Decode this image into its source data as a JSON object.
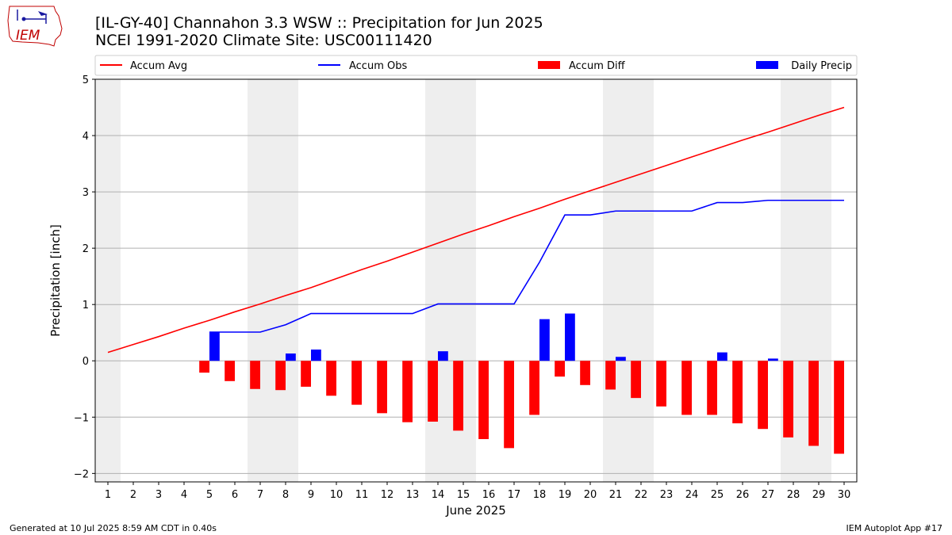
{
  "title": {
    "line1": "[IL-GY-40] Channahon 3.3 WSW :: Precipitation for Jun 2025",
    "line2": "NCEI 1991-2020 Climate Site: USC00111420"
  },
  "logo_text": "IEM",
  "footer": {
    "left": "Generated at 10 Jul 2025 8:59 AM CDT in 0.40s",
    "right": "IEM Autoplot App #17"
  },
  "colors": {
    "accum_avg": "#ff0000",
    "accum_obs": "#0000ff",
    "accum_diff": "#ff0000",
    "daily_precip": "#0000ff",
    "weekend_shade": "#eeeeee",
    "grid": "#b0b0b0"
  },
  "chart_data": {
    "type": "bar",
    "xlabel": "June 2025",
    "ylabel": "Precipitation [inch]",
    "ylim": [
      -2.15,
      5
    ],
    "yticks": [
      5,
      4,
      3,
      2,
      1,
      0,
      -1,
      -2
    ],
    "ytick_labels": [
      "5",
      "4",
      "3",
      "2",
      "1",
      "0",
      "−1",
      "−2"
    ],
    "grid": true,
    "legend_placement": "top",
    "days": [
      1,
      2,
      3,
      4,
      5,
      6,
      7,
      8,
      9,
      10,
      11,
      12,
      13,
      14,
      15,
      16,
      17,
      18,
      19,
      20,
      21,
      22,
      23,
      24,
      25,
      26,
      27,
      28,
      29,
      30
    ],
    "shaded_days": [
      1,
      7,
      8,
      14,
      15,
      21,
      22,
      28,
      29
    ],
    "series": [
      {
        "name": "Accum Avg",
        "kind": "line",
        "values": [
          0.15,
          0.29,
          0.43,
          0.58,
          0.72,
          0.87,
          1.01,
          1.16,
          1.3,
          1.46,
          1.62,
          1.77,
          1.93,
          2.09,
          2.25,
          2.4,
          2.56,
          2.71,
          2.87,
          3.02,
          3.17,
          3.32,
          3.47,
          3.62,
          3.77,
          3.92,
          4.06,
          4.21,
          4.36,
          4.5
        ]
      },
      {
        "name": "Accum Obs",
        "kind": "line",
        "start_day": 5,
        "values": [
          0.51,
          0.51,
          0.51,
          0.64,
          0.84,
          0.84,
          0.84,
          0.84,
          0.84,
          1.01,
          1.01,
          1.01,
          1.01,
          1.75,
          2.59,
          2.59,
          2.66,
          2.66,
          2.66,
          2.66,
          2.81,
          2.81,
          2.85,
          2.85,
          2.85,
          2.85
        ]
      },
      {
        "name": "Accum Diff",
        "kind": "bar",
        "start_day": 5,
        "values": [
          -0.21,
          -0.36,
          -0.5,
          -0.52,
          -0.46,
          -0.62,
          -0.78,
          -0.93,
          -1.09,
          -1.08,
          -1.24,
          -1.39,
          -1.55,
          -0.96,
          -0.28,
          -0.43,
          -0.51,
          -0.66,
          -0.81,
          -0.96,
          -0.96,
          -1.11,
          -1.21,
          -1.36,
          -1.51,
          -1.65
        ]
      },
      {
        "name": "Daily Precip",
        "kind": "bar",
        "points": [
          [
            5,
            0.51
          ],
          [
            8,
            0.13
          ],
          [
            9,
            0.2
          ],
          [
            14,
            0.17
          ],
          [
            18,
            0.74
          ],
          [
            19,
            0.84
          ],
          [
            21,
            0.07
          ],
          [
            25,
            0.15
          ],
          [
            27,
            0.04
          ]
        ]
      }
    ]
  }
}
